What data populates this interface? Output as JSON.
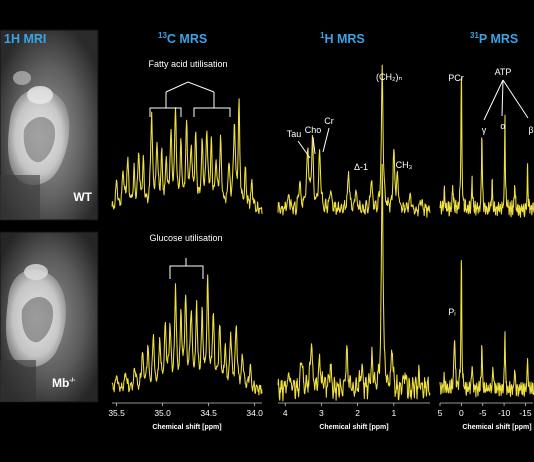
{
  "headers": {
    "mri": "1H MRI",
    "c13": {
      "sup": "13",
      "text": "C MRS"
    },
    "h1": {
      "sup": "1",
      "text": "H MRS"
    },
    "p31": {
      "sup": "31",
      "text": "P MRS"
    }
  },
  "genotypes": {
    "wt": "WT",
    "mb": {
      "text": "Mb",
      "sup": "-/-"
    }
  },
  "annotations": {
    "fatty": "Fatty acid utilisation",
    "glucose": "Glucose utilisation",
    "tau": "Tau",
    "cho": "Cho",
    "cr": "Cr",
    "ch2": "(CH₂)ₙ",
    "delta": "Δ-1",
    "ch3": "CH₃",
    "pcr": "PCr",
    "atp": "ATP",
    "gamma": "γ",
    "alpha": "α",
    "beta": "β",
    "pi": "Pᵢ"
  },
  "chart_data": [
    {
      "type": "line",
      "panel": "13C MRS",
      "xlabel": "Chemical shift [ppm]",
      "xlim": [
        35.55,
        33.92
      ],
      "xticks": [
        35.5,
        35.0,
        34.5,
        34.0
      ],
      "xtick_labels": [
        "35.5",
        "35.0",
        "34.5",
        "34.0"
      ],
      "series": [
        {
          "row": "WT",
          "peaks": [
            [
              35.5,
              0.22
            ],
            [
              35.43,
              0.3
            ],
            [
              35.38,
              0.38
            ],
            [
              35.31,
              0.3
            ],
            [
              35.26,
              0.45
            ],
            [
              35.21,
              0.36
            ],
            [
              35.12,
              0.78
            ],
            [
              35.06,
              0.52
            ],
            [
              35.01,
              0.4
            ],
            [
              34.96,
              0.36
            ],
            [
              34.91,
              0.58
            ],
            [
              34.86,
              0.82
            ],
            [
              34.8,
              0.5
            ],
            [
              34.74,
              0.66
            ],
            [
              34.69,
              0.48
            ],
            [
              34.64,
              0.58
            ],
            [
              34.57,
              0.52
            ],
            [
              34.52,
              0.62
            ],
            [
              34.47,
              0.5
            ],
            [
              34.42,
              0.38
            ],
            [
              34.37,
              0.52
            ],
            [
              34.28,
              0.36
            ],
            [
              34.22,
              0.68
            ],
            [
              34.17,
              0.85
            ],
            [
              34.1,
              0.3
            ],
            [
              34.03,
              0.22
            ]
          ]
        },
        {
          "row": "Mb-/-",
          "peaks": [
            [
              35.5,
              0.12
            ],
            [
              35.4,
              0.16
            ],
            [
              35.3,
              0.18
            ],
            [
              35.22,
              0.28
            ],
            [
              35.16,
              0.36
            ],
            [
              35.1,
              0.46
            ],
            [
              35.03,
              0.4
            ],
            [
              34.97,
              0.5
            ],
            [
              34.92,
              0.48
            ],
            [
              34.86,
              0.82
            ],
            [
              34.8,
              0.58
            ],
            [
              34.75,
              0.72
            ],
            [
              34.69,
              0.62
            ],
            [
              34.63,
              0.68
            ],
            [
              34.57,
              0.6
            ],
            [
              34.51,
              0.85
            ],
            [
              34.45,
              0.56
            ],
            [
              34.38,
              0.5
            ],
            [
              34.32,
              0.34
            ],
            [
              34.26,
              0.44
            ],
            [
              34.2,
              0.52
            ],
            [
              34.13,
              0.28
            ],
            [
              34.05,
              0.18
            ]
          ]
        }
      ]
    },
    {
      "type": "line",
      "panel": "1H MRS",
      "xlabel": "Chemical shift [ppm]",
      "xlim": [
        4.2,
        0.0
      ],
      "xticks": [
        4,
        3,
        2,
        1
      ],
      "xtick_labels": [
        "4",
        "3",
        "2",
        "1"
      ],
      "series": [
        {
          "row": "WT",
          "peaks": [
            [
              3.9,
              0.1
            ],
            [
              3.6,
              0.18
            ],
            [
              3.38,
              0.42
            ],
            [
              3.25,
              0.5
            ],
            [
              3.05,
              0.4
            ],
            [
              2.75,
              0.14
            ],
            [
              2.25,
              0.28
            ],
            [
              2.05,
              0.16
            ],
            [
              1.62,
              0.22
            ],
            [
              1.32,
              1.0
            ],
            [
              1.0,
              0.4
            ],
            [
              0.9,
              0.22
            ],
            [
              0.55,
              0.1
            ],
            [
              0.25,
              0.08
            ]
          ]
        },
        {
          "row": "Mb-/-",
          "peaks": [
            [
              3.9,
              0.08
            ],
            [
              3.55,
              0.16
            ],
            [
              3.28,
              0.2
            ],
            [
              3.05,
              0.14
            ],
            [
              2.75,
              0.1
            ],
            [
              2.3,
              0.16
            ],
            [
              1.9,
              0.1
            ],
            [
              1.6,
              0.14
            ],
            [
              1.32,
              1.0
            ],
            [
              1.05,
              0.18
            ],
            [
              0.7,
              0.08
            ],
            [
              0.3,
              0.06
            ]
          ]
        }
      ]
    },
    {
      "type": "line",
      "panel": "31P MRS",
      "xlabel": "Chemical shift [ppm]",
      "xlim": [
        5.0,
        -17.0
      ],
      "xticks": [
        5,
        0,
        -5,
        -10,
        -15
      ],
      "xtick_labels": [
        "5",
        "0",
        "-5",
        "-10",
        "-15"
      ],
      "series": [
        {
          "row": "WT",
          "peaks": [
            [
              4.0,
              0.12
            ],
            [
              2.0,
              0.18
            ],
            [
              0.0,
              0.95
            ],
            [
              -2.5,
              0.24
            ],
            [
              -4.8,
              0.55
            ],
            [
              -7.2,
              0.24
            ],
            [
              -10.2,
              0.68
            ],
            [
              -12.5,
              0.22
            ],
            [
              -15.5,
              0.3
            ]
          ]
        },
        {
          "row": "Mb-/-",
          "peaks": [
            [
              4.0,
              0.1
            ],
            [
              1.6,
              0.4
            ],
            [
              0.0,
              0.9
            ],
            [
              -2.5,
              0.2
            ],
            [
              -4.8,
              0.34
            ],
            [
              -7.4,
              0.18
            ],
            [
              -10.2,
              0.44
            ],
            [
              -12.5,
              0.16
            ],
            [
              -15.5,
              0.24
            ]
          ]
        }
      ]
    }
  ]
}
